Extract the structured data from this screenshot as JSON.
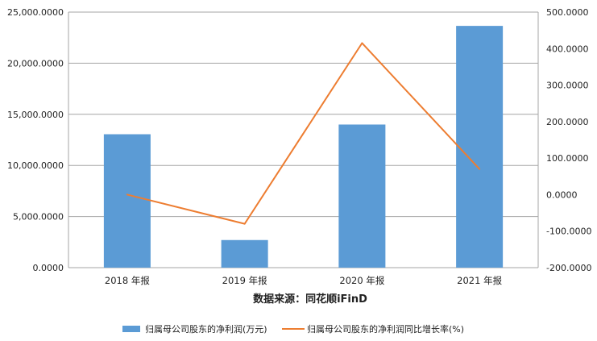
{
  "chart_data": {
    "type": "bar",
    "categories": [
      "2018 年报",
      "2019 年报",
      "2020 年报",
      "2021 年报"
    ],
    "series": [
      {
        "name": "归属母公司股东的净利润(万元)",
        "type": "bar",
        "axis": "left",
        "color": "#5b9bd5",
        "values": [
          13050,
          2700,
          14000,
          23650
        ]
      },
      {
        "name": "归属母公司股东的净利润同比增长率(%)",
        "type": "line",
        "axis": "right",
        "color": "#ed7d31",
        "values": [
          0,
          -80,
          415,
          70
        ]
      }
    ],
    "y_left": {
      "min": 0,
      "max": 25000,
      "step": 5000,
      "tick_labels": [
        "0.0000",
        "5,000.0000",
        "10,000.0000",
        "15,000.0000",
        "20,000.0000",
        "25,000.0000"
      ]
    },
    "y_right": {
      "min": -200,
      "max": 500,
      "step": 100,
      "tick_labels": [
        "-200.0000",
        "-100.0000",
        "0.0000",
        "100.0000",
        "200.0000",
        "300.0000",
        "400.0000",
        "500.0000"
      ]
    },
    "source_label": "数据来源：同花顺iFinD",
    "grid": true,
    "legend_position": "bottom"
  }
}
